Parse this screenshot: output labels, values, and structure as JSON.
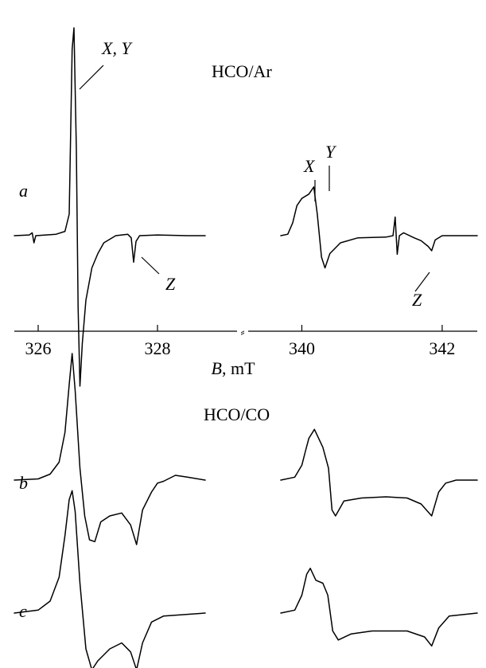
{
  "chart_data": {
    "type": "line",
    "title": "",
    "xlabel_var": "B",
    "xlabel_unit": ", mT",
    "x_ticks_left": [
      326,
      328
    ],
    "x_ticks_right": [
      340,
      342
    ],
    "xlim_left": [
      325.6,
      328.8
    ],
    "xlim_right": [
      339.7,
      342.5
    ],
    "x_break_symbol": "⸗",
    "panels": [
      {
        "id": "a",
        "label": "a",
        "sample": "HCO/Ar",
        "annotations": {
          "xy": "X, Y",
          "z_left": "Z",
          "x_right": "X",
          "y_right": "Y",
          "z_right": "Z"
        },
        "left": {
          "baseline": 0,
          "points": [
            [
              325.6,
              0
            ],
            [
              325.85,
              0.01
            ],
            [
              325.9,
              0.04
            ],
            [
              325.93,
              -0.1
            ],
            [
              325.96,
              0
            ],
            [
              326.3,
              0.02
            ],
            [
              326.45,
              0.06
            ],
            [
              326.52,
              0.3
            ],
            [
              326.57,
              2.6
            ],
            [
              326.6,
              2.9
            ],
            [
              326.64,
              1.2
            ],
            [
              326.67,
              -1.0
            ],
            [
              326.7,
              -2.1
            ],
            [
              326.74,
              -1.5
            ],
            [
              326.8,
              -0.9
            ],
            [
              326.9,
              -0.45
            ],
            [
              327.0,
              -0.25
            ],
            [
              327.1,
              -0.1
            ],
            [
              327.3,
              0
            ],
            [
              327.5,
              0.02
            ],
            [
              327.56,
              -0.03
            ],
            [
              327.6,
              -0.37
            ],
            [
              327.64,
              -0.08
            ],
            [
              327.7,
              0
            ],
            [
              328.0,
              0.01
            ],
            [
              328.5,
              0
            ],
            [
              328.8,
              0
            ]
          ]
        },
        "right": {
          "baseline": 0,
          "points": [
            [
              339.7,
              0
            ],
            [
              339.8,
              0.02
            ],
            [
              339.87,
              0.18
            ],
            [
              339.93,
              0.42
            ],
            [
              340.0,
              0.52
            ],
            [
              340.1,
              0.58
            ],
            [
              340.17,
              0.68
            ],
            [
              340.22,
              0.3
            ],
            [
              340.28,
              -0.3
            ],
            [
              340.33,
              -0.45
            ],
            [
              340.4,
              -0.25
            ],
            [
              340.55,
              -0.1
            ],
            [
              340.8,
              -0.03
            ],
            [
              341.2,
              -0.02
            ],
            [
              341.3,
              0
            ],
            [
              341.33,
              0.26
            ],
            [
              341.36,
              -0.26
            ],
            [
              341.39,
              0
            ],
            [
              341.45,
              0.04
            ],
            [
              341.6,
              -0.03
            ],
            [
              341.7,
              -0.07
            ],
            [
              341.8,
              -0.15
            ],
            [
              341.85,
              -0.21
            ],
            [
              341.9,
              -0.06
            ],
            [
              342.0,
              0
            ],
            [
              342.5,
              0
            ]
          ]
        }
      },
      {
        "id": "b",
        "label": "b",
        "sample": "HCO/CO",
        "left": {
          "points": [
            [
              325.6,
              0
            ],
            [
              326.0,
              0.02
            ],
            [
              326.2,
              0.1
            ],
            [
              326.35,
              0.3
            ],
            [
              326.45,
              0.8
            ],
            [
              326.52,
              1.6
            ],
            [
              326.57,
              2.12
            ],
            [
              326.62,
              1.5
            ],
            [
              326.7,
              0.2
            ],
            [
              326.78,
              -0.6
            ],
            [
              326.86,
              -1.0
            ],
            [
              326.95,
              -1.03
            ],
            [
              327.05,
              -0.7
            ],
            [
              327.2,
              -0.6
            ],
            [
              327.4,
              -0.55
            ],
            [
              327.55,
              -0.75
            ],
            [
              327.65,
              -1.08
            ],
            [
              327.75,
              -0.5
            ],
            [
              327.9,
              -0.2
            ],
            [
              328.0,
              -0.05
            ],
            [
              328.1,
              -0.02
            ],
            [
              328.3,
              0.08
            ],
            [
              328.5,
              0.05
            ],
            [
              328.8,
              0
            ]
          ]
        },
        "right": {
          "points": [
            [
              339.7,
              0
            ],
            [
              339.9,
              0.05
            ],
            [
              340.0,
              0.25
            ],
            [
              340.05,
              0.48
            ],
            [
              340.1,
              0.7
            ],
            [
              340.18,
              0.85
            ],
            [
              340.3,
              0.55
            ],
            [
              340.38,
              0.2
            ],
            [
              340.43,
              -0.5
            ],
            [
              340.48,
              -0.6
            ],
            [
              340.6,
              -0.35
            ],
            [
              340.85,
              -0.3
            ],
            [
              341.2,
              -0.28
            ],
            [
              341.5,
              -0.3
            ],
            [
              341.7,
              -0.4
            ],
            [
              341.85,
              -0.6
            ],
            [
              341.95,
              -0.2
            ],
            [
              342.05,
              -0.05
            ],
            [
              342.2,
              0
            ],
            [
              342.5,
              0
            ]
          ]
        }
      },
      {
        "id": "c",
        "label": "c",
        "sample": "",
        "left": {
          "points": [
            [
              325.6,
              0
            ],
            [
              326.0,
              0.05
            ],
            [
              326.2,
              0.2
            ],
            [
              326.35,
              0.6
            ],
            [
              326.45,
              1.3
            ],
            [
              326.52,
              1.9
            ],
            [
              326.57,
              2.05
            ],
            [
              326.62,
              1.7
            ],
            [
              326.7,
              0.5
            ],
            [
              326.8,
              -0.6
            ],
            [
              326.9,
              -0.95
            ],
            [
              327.0,
              -0.8
            ],
            [
              327.2,
              -0.6
            ],
            [
              327.4,
              -0.5
            ],
            [
              327.55,
              -0.65
            ],
            [
              327.65,
              -0.95
            ],
            [
              327.75,
              -0.5
            ],
            [
              327.9,
              -0.15
            ],
            [
              328.1,
              -0.05
            ],
            [
              328.8,
              0
            ]
          ]
        },
        "right": {
          "points": [
            [
              339.7,
              0
            ],
            [
              339.9,
              0.05
            ],
            [
              340.0,
              0.3
            ],
            [
              340.07,
              0.65
            ],
            [
              340.12,
              0.75
            ],
            [
              340.2,
              0.55
            ],
            [
              340.3,
              0.5
            ],
            [
              340.37,
              0.3
            ],
            [
              340.44,
              -0.3
            ],
            [
              340.52,
              -0.45
            ],
            [
              340.7,
              -0.35
            ],
            [
              341.0,
              -0.3
            ],
            [
              341.5,
              -0.3
            ],
            [
              341.75,
              -0.4
            ],
            [
              341.85,
              -0.55
            ],
            [
              341.95,
              -0.25
            ],
            [
              342.1,
              -0.05
            ],
            [
              342.5,
              0
            ]
          ]
        }
      }
    ]
  }
}
